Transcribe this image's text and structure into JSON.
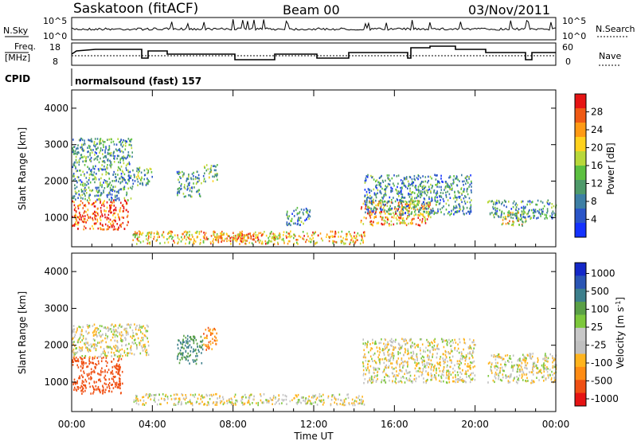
{
  "header": {
    "station": "Saskatoon (fitACF)",
    "beam": "Beam 00",
    "date": "03/Nov/2011"
  },
  "nsky_panel": {
    "left_label": "N.Sky",
    "left_ticks": [
      "10^5",
      "10^0"
    ],
    "right_label": "N.Search",
    "right_ticks": [
      "10^5",
      "10^0"
    ]
  },
  "freq_panel": {
    "left_label_1": "Freq.",
    "left_label_2": "[MHz]",
    "left_ticks": [
      "18",
      "8"
    ],
    "right_label": "Nave",
    "right_ticks": [
      "60",
      "0"
    ]
  },
  "cpid": {
    "label": "CPID",
    "program": "normalsound (fast) 157"
  },
  "colors": {
    "power_scale": [
      "#1432ff",
      "#2a55c8",
      "#3d7fa5",
      "#4e9a6a",
      "#5cc040",
      "#b8d83a",
      "#ffd21e",
      "#ff9a14",
      "#f05a14",
      "#e61414"
    ],
    "velocity_scale": [
      "#1428c8",
      "#2a55b4",
      "#3c7f8c",
      "#5aa046",
      "#7dc83c",
      "#c8c8c8",
      "#c0c0c0",
      "#ffb41e",
      "#ff8c14",
      "#f05014",
      "#e61414"
    ]
  },
  "chart_data": [
    {
      "type": "heatmap",
      "name": "power",
      "ylabel": "Slant Range [km]",
      "yticks": [
        "1000",
        "2000",
        "3000",
        "4000"
      ],
      "ylim": [
        200,
        4500
      ],
      "xlim_hours": [
        0,
        24
      ],
      "colorbar_label": "Power [dB]",
      "colorbar_ticks": [
        "4",
        "8",
        "12",
        "16",
        "20",
        "24",
        "28"
      ],
      "regions": [
        {
          "t": [
            0.0,
            2.8
          ],
          "r": [
            700,
            1500
          ],
          "value": 26
        },
        {
          "t": [
            0.0,
            3.0
          ],
          "r": [
            1500,
            3200
          ],
          "value": 10
        },
        {
          "t": [
            3.0,
            4.0
          ],
          "r": [
            1900,
            2400
          ],
          "value": 12
        },
        {
          "t": [
            5.2,
            6.4
          ],
          "r": [
            1600,
            2300
          ],
          "value": 10
        },
        {
          "t": [
            6.5,
            7.2
          ],
          "r": [
            2000,
            2500
          ],
          "value": 12
        },
        {
          "t": [
            3.0,
            14.5
          ],
          "r": [
            300,
            650
          ],
          "value": 20
        },
        {
          "t": [
            7.0,
            9.5
          ],
          "r": [
            350,
            600
          ],
          "value": 25
        },
        {
          "t": [
            10.6,
            11.8
          ],
          "r": [
            800,
            1300
          ],
          "value": 9
        },
        {
          "t": [
            14.3,
            17.8
          ],
          "r": [
            800,
            1500
          ],
          "value": 22
        },
        {
          "t": [
            14.5,
            19.8
          ],
          "r": [
            1100,
            2200
          ],
          "value": 9
        },
        {
          "t": [
            20.6,
            24.0
          ],
          "r": [
            1000,
            1500
          ],
          "value": 10
        },
        {
          "t": [
            21.3,
            22.5
          ],
          "r": [
            800,
            1200
          ],
          "value": 18
        }
      ]
    },
    {
      "type": "heatmap",
      "name": "velocity",
      "ylabel": "Slant Range [km]",
      "yticks": [
        "1000",
        "2000",
        "3000",
        "4000"
      ],
      "ylim": [
        200,
        4500
      ],
      "xlim_hours": [
        0,
        24
      ],
      "colorbar_label": "Velocity [m s-1]",
      "colorbar_ticks": [
        "1000",
        "500",
        "100",
        "25",
        "-25",
        "-100",
        "-500",
        "-1000"
      ],
      "xticks": [
        "00:00",
        "04:00",
        "08:00",
        "12:00",
        "16:00",
        "20:00",
        "00:00"
      ],
      "xlabel": "Time UT",
      "regions": [
        {
          "t": [
            0.0,
            2.5
          ],
          "r": [
            700,
            1700
          ],
          "value": -300
        },
        {
          "t": [
            0.0,
            3.8
          ],
          "r": [
            1700,
            2600
          ],
          "value": 0
        },
        {
          "t": [
            5.2,
            6.5
          ],
          "r": [
            1500,
            2300
          ],
          "value": 200
        },
        {
          "t": [
            6.5,
            7.2
          ],
          "r": [
            1900,
            2500
          ],
          "value": -150
        },
        {
          "t": [
            3.0,
            14.5
          ],
          "r": [
            400,
            700
          ],
          "value": 0
        },
        {
          "t": [
            14.4,
            20.0
          ],
          "r": [
            1000,
            2200
          ],
          "value": 0
        },
        {
          "t": [
            20.6,
            24.0
          ],
          "r": [
            1000,
            1800
          ],
          "value": 0
        }
      ]
    }
  ]
}
